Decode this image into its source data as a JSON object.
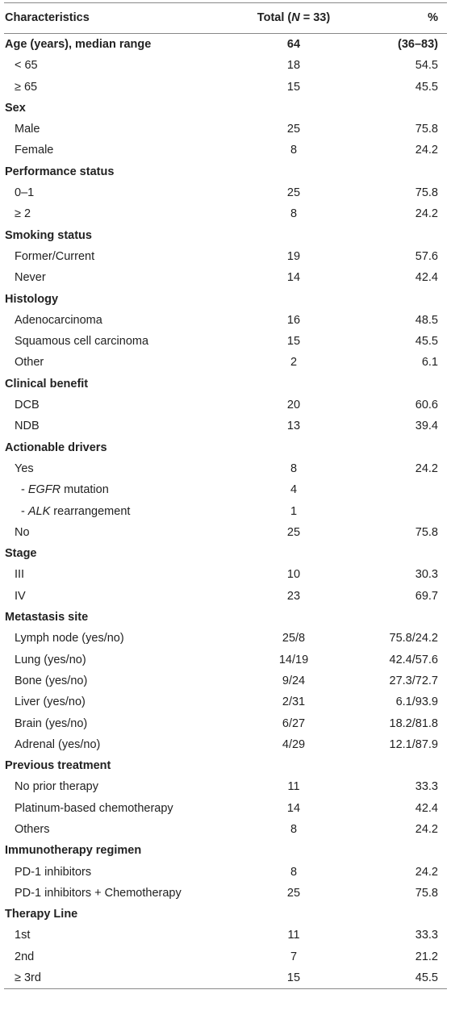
{
  "header": {
    "characteristics": "Characteristics",
    "total_prefix": "Total (",
    "total_n": "N",
    "total_suffix": " = 33)",
    "percent": "%"
  },
  "rows": [
    {
      "label": "Age (years), median range",
      "total": "64",
      "pct": "(36–83)",
      "kind": "section"
    },
    {
      "label": "< 65",
      "total": "18",
      "pct": "54.5",
      "kind": "item"
    },
    {
      "label": "≥ 65",
      "total": "15",
      "pct": "45.5",
      "kind": "item"
    },
    {
      "label": "Sex",
      "total": "",
      "pct": "",
      "kind": "section"
    },
    {
      "label": "Male",
      "total": "25",
      "pct": "75.8",
      "kind": "item"
    },
    {
      "label": "Female",
      "total": "8",
      "pct": "24.2",
      "kind": "item"
    },
    {
      "label": "Performance status",
      "total": "",
      "pct": "",
      "kind": "section"
    },
    {
      "label": "0–1",
      "total": "25",
      "pct": "75.8",
      "kind": "item"
    },
    {
      "label": "≥ 2",
      "total": "8",
      "pct": "24.2",
      "kind": "item"
    },
    {
      "label": "Smoking status",
      "total": "",
      "pct": "",
      "kind": "section"
    },
    {
      "label": "Former/Current",
      "total": "19",
      "pct": "57.6",
      "kind": "item"
    },
    {
      "label": "Never",
      "total": "14",
      "pct": "42.4",
      "kind": "item"
    },
    {
      "label": "Histology",
      "total": "",
      "pct": "",
      "kind": "section"
    },
    {
      "label": "Adenocarcinoma",
      "total": "16",
      "pct": "48.5",
      "kind": "item"
    },
    {
      "label": "Squamous cell carcinoma",
      "total": "15",
      "pct": "45.5",
      "kind": "item"
    },
    {
      "label": "Other",
      "total": "2",
      "pct": "6.1",
      "kind": "item"
    },
    {
      "label": "Clinical benefit",
      "total": "",
      "pct": "",
      "kind": "section"
    },
    {
      "label": "DCB",
      "total": "20",
      "pct": "60.6",
      "kind": "item"
    },
    {
      "label": "NDB",
      "total": "13",
      "pct": "39.4",
      "kind": "item"
    },
    {
      "label": "Actionable drivers",
      "total": "",
      "pct": "",
      "kind": "section"
    },
    {
      "label": "Yes",
      "total": "8",
      "pct": "24.2",
      "kind": "item"
    },
    {
      "label": "- ",
      "italic": "EGFR",
      "rest": " mutation",
      "total": "4",
      "pct": "",
      "kind": "sub"
    },
    {
      "label": "- ",
      "italic": "ALK",
      "rest": " rearrangement",
      "total": "1",
      "pct": "",
      "kind": "sub"
    },
    {
      "label": "No",
      "total": "25",
      "pct": "75.8",
      "kind": "item"
    },
    {
      "label": "Stage",
      "total": "",
      "pct": "",
      "kind": "section"
    },
    {
      "label": "III",
      "total": "10",
      "pct": "30.3",
      "kind": "item"
    },
    {
      "label": "IV",
      "total": "23",
      "pct": "69.7",
      "kind": "item"
    },
    {
      "label": "Metastasis site",
      "total": "",
      "pct": "",
      "kind": "section"
    },
    {
      "label": "Lymph node (yes/no)",
      "total": "25/8",
      "pct": "75.8/24.2",
      "kind": "item"
    },
    {
      "label": "Lung (yes/no)",
      "total": "14/19",
      "pct": "42.4/57.6",
      "kind": "item"
    },
    {
      "label": "Bone (yes/no)",
      "total": "9/24",
      "pct": "27.3/72.7",
      "kind": "item"
    },
    {
      "label": "Liver (yes/no)",
      "total": "2/31",
      "pct": "6.1/93.9",
      "kind": "item"
    },
    {
      "label": "Brain (yes/no)",
      "total": "6/27",
      "pct": "18.2/81.8",
      "kind": "item"
    },
    {
      "label": "Adrenal (yes/no)",
      "total": "4/29",
      "pct": "12.1/87.9",
      "kind": "item"
    },
    {
      "label": "Previous treatment",
      "total": "",
      "pct": "",
      "kind": "section"
    },
    {
      "label": "No prior therapy",
      "total": "11",
      "pct": "33.3",
      "kind": "item"
    },
    {
      "label": "Platinum-based chemotherapy",
      "total": "14",
      "pct": "42.4",
      "kind": "item"
    },
    {
      "label": "Others",
      "total": "8",
      "pct": "24.2",
      "kind": "item"
    },
    {
      "label": "Immunotherapy regimen",
      "total": "",
      "pct": "",
      "kind": "section"
    },
    {
      "label": "PD-1 inhibitors",
      "total": "8",
      "pct": "24.2",
      "kind": "item"
    },
    {
      "label": "PD-1 inhibitors + Chemotherapy",
      "total": "25",
      "pct": "75.8",
      "kind": "item"
    },
    {
      "label": "Therapy Line",
      "total": "",
      "pct": "",
      "kind": "section"
    },
    {
      "label": "1st",
      "total": "11",
      "pct": "33.3",
      "kind": "item"
    },
    {
      "label": "2nd",
      "total": "7",
      "pct": "21.2",
      "kind": "item"
    },
    {
      "label": "≥ 3rd",
      "total": "15",
      "pct": "45.5",
      "kind": "item"
    }
  ]
}
